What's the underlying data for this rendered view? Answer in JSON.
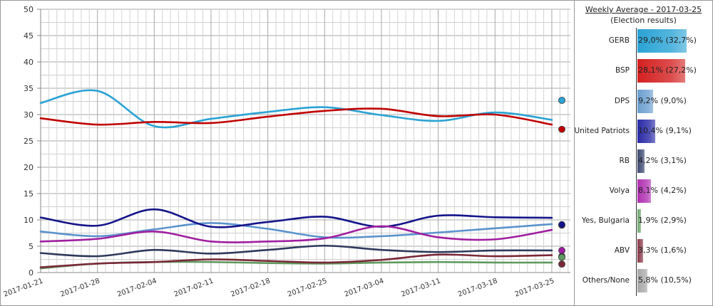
{
  "chart_data": {
    "type": "line",
    "x": [
      "2017-01-21",
      "2017-01-28",
      "2017-02-04",
      "2017-02-11",
      "2017-02-18",
      "2017-02-25",
      "2017-03-04",
      "2017-03-11",
      "2017-03-18",
      "2017-03-25"
    ],
    "ylim": [
      0,
      50
    ],
    "yticks": [
      0,
      5,
      10,
      15,
      20,
      25,
      30,
      35,
      40,
      45,
      50
    ],
    "grid": true,
    "series": [
      {
        "name": "GERB",
        "color": "#2aa3d5",
        "values": [
          32.2,
          34.5,
          27.8,
          29.2,
          30.5,
          31.4,
          29.9,
          28.8,
          30.4,
          29.0
        ],
        "election": 32.7
      },
      {
        "name": "BSP",
        "color": "#c00000",
        "values": [
          29.3,
          28.1,
          28.6,
          28.4,
          29.6,
          30.7,
          31.1,
          29.7,
          30.0,
          28.1
        ],
        "election": 27.2
      },
      {
        "name": "DPS",
        "color": "#5b93cc",
        "values": [
          7.8,
          6.9,
          8.2,
          9.4,
          8.3,
          6.7,
          6.9,
          7.6,
          8.4,
          9.2
        ],
        "election": 9.0
      },
      {
        "name": "United Patriots",
        "color": "#14148a",
        "values": [
          10.45,
          8.9,
          12.0,
          8.7,
          9.6,
          10.6,
          8.7,
          10.8,
          10.5,
          10.4
        ],
        "election": 9.1
      },
      {
        "name": "RB",
        "color": "#2e3a5c",
        "values": [
          3.7,
          3.1,
          4.3,
          3.6,
          4.3,
          5.1,
          4.3,
          3.9,
          4.2,
          4.2
        ],
        "election": 3.1
      },
      {
        "name": "Volya",
        "color": "#a01ea0",
        "values": [
          5.9,
          6.4,
          7.8,
          5.9,
          5.9,
          6.5,
          8.8,
          6.7,
          6.3,
          8.1
        ],
        "election": 4.2
      },
      {
        "name": "Yes, Bulgaria",
        "color": "#5f9a5f",
        "values": [
          0.8,
          1.7,
          2.0,
          2.0,
          1.8,
          1.7,
          1.9,
          2.0,
          1.9,
          1.9
        ],
        "election": 2.9
      },
      {
        "name": "ABV",
        "color": "#7a2838",
        "values": [
          1.0,
          1.7,
          2.0,
          2.5,
          2.2,
          1.9,
          2.4,
          3.4,
          3.1,
          3.3
        ],
        "election": 1.6
      }
    ]
  },
  "panel": {
    "title": "Weekly Average - 2017-03-25",
    "subtitle": "(Election results)",
    "rows": [
      {
        "label": "GERB",
        "value": 29.0,
        "text": "29,0% (32,7%)",
        "color": "#2aa3d5"
      },
      {
        "label": "BSP",
        "value": 28.1,
        "text": "28,1% (27,2%)",
        "color": "#d42020"
      },
      {
        "label": "DPS",
        "value": 9.2,
        "text": "9,2% (9,0%)",
        "color": "#6b9fd0"
      },
      {
        "label": "United Patriots",
        "value": 10.4,
        "text": "10,4% (9,1%)",
        "color": "#2a2aa8"
      },
      {
        "label": "RB",
        "value": 4.2,
        "text": "4,2% (3,1%)",
        "color": "#3c4a70"
      },
      {
        "label": "Volya",
        "value": 8.1,
        "text": "8,1% (4,2%)",
        "color": "#b030b0"
      },
      {
        "label": "Yes, Bulgaria",
        "value": 1.9,
        "text": "1,9% (2,9%)",
        "color": "#6fa86f"
      },
      {
        "label": "ABV",
        "value": 3.3,
        "text": "3,3% (1,6%)",
        "color": "#8a3a4a"
      },
      {
        "label": "Others/None",
        "value": 5.8,
        "text": "5,8% (10,5%)",
        "color": "#a8a8a8"
      }
    ]
  }
}
